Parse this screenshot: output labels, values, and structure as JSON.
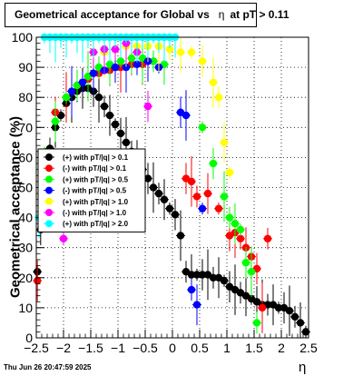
{
  "title": {
    "prefix": "Geometrical acceptance for Global vs",
    "symbol": "η",
    "suffix": "at pT > 0.11"
  },
  "footer": "Thu Jun 26 20:47:59 2025",
  "chart_data": {
    "type": "scatter",
    "title": "Geometrical acceptance for Global vs η at pT > 0.11",
    "xlabel": "η",
    "ylabel": "Geometrical acceptance (%)",
    "xlim": [
      -2.5,
      2.5
    ],
    "ylim": [
      0,
      100
    ],
    "x_ticks": [
      -2.5,
      -2,
      -1.5,
      -1,
      -0.5,
      0,
      0.5,
      1,
      1.5,
      2,
      2.5
    ],
    "x_tick_labels": [
      "−2.5",
      "−2",
      "−1.5",
      "−1",
      "−0.5",
      "0",
      "0.5",
      "1",
      "1.5",
      "2",
      "2.5"
    ],
    "y_ticks": [
      0,
      10,
      20,
      30,
      40,
      50,
      60,
      70,
      80,
      90,
      100
    ],
    "grid": true,
    "legend_position": "middle-left",
    "series": [
      {
        "name": "(+) with pT/|q| > 0.1",
        "color": "#000000",
        "x": [
          -2.48,
          -2.42,
          -2.35,
          -2.25,
          -2.15,
          -2.05,
          -1.95,
          -1.85,
          -1.75,
          -1.65,
          -1.55,
          -1.45,
          -1.35,
          -1.25,
          -1.15,
          -1.05,
          -0.95,
          -0.85,
          -0.75,
          -0.65,
          -0.55,
          -0.45,
          -0.35,
          -0.25,
          -0.15,
          -0.05,
          0.05,
          0.15,
          0.25,
          0.35,
          0.45,
          0.55,
          0.65,
          0.75,
          0.85,
          0.95,
          1.05,
          1.15,
          1.25,
          1.35,
          1.45,
          1.55,
          1.65,
          1.75,
          1.85,
          1.95,
          2.05,
          2.15,
          2.25,
          2.35,
          2.45
        ],
        "y": [
          22,
          36,
          50,
          63,
          70,
          74,
          78,
          80,
          82,
          83,
          83,
          82,
          80,
          77,
          74,
          71,
          68,
          65,
          62,
          59,
          56,
          53,
          50,
          48,
          46,
          43,
          41,
          34,
          22,
          21,
          21,
          21,
          21,
          20,
          20,
          19,
          17,
          16,
          15,
          14,
          13,
          12,
          11,
          11,
          11,
          10,
          10,
          9,
          7,
          5,
          2
        ]
      },
      {
        "name": "(-) with pT/|q| > 0.1",
        "color": "#ff0000",
        "x": [
          -2.48,
          -2.35,
          -2.15,
          -1.95,
          -1.75,
          -1.55,
          -1.35,
          -1.15,
          -0.95,
          -0.75,
          -0.55,
          -0.35,
          0.25,
          0.35,
          0.45,
          0.65,
          0.85,
          1.05,
          1.15,
          1.25,
          1.35,
          1.45,
          1.55,
          1.65,
          1.75
        ],
        "y": [
          19,
          56,
          75,
          80,
          84,
          86,
          88,
          89,
          90,
          91,
          91,
          92,
          53,
          52,
          47,
          48,
          43,
          34,
          35,
          33,
          30,
          27,
          23,
          10,
          33
        ]
      },
      {
        "name": "(+) with pT/|q| > 0.5",
        "color": "#00ff00",
        "x": [
          -2.35,
          -2.15,
          -1.95,
          -1.75,
          -1.55,
          -1.35,
          -1.15,
          -0.95,
          -0.75,
          -0.55,
          -0.35,
          -0.15,
          0.55,
          0.75,
          0.95,
          1.05,
          1.15,
          1.25,
          1.35,
          1.45,
          1.55
        ],
        "y": [
          60,
          72,
          80,
          84,
          87,
          90,
          91,
          92,
          93,
          93,
          92,
          91,
          70,
          58,
          47,
          40,
          38,
          36,
          25,
          22,
          5
        ]
      },
      {
        "name": "(-) with pT/|q| > 0.5",
        "color": "#0000ff",
        "x": [
          -1.85,
          -1.65,
          -1.45,
          -1.25,
          -1.05,
          -0.85,
          -0.65,
          -0.45,
          -0.25,
          0.15,
          0.25,
          0.35,
          0.45,
          0.55
        ],
        "y": [
          82,
          85,
          88,
          89,
          90,
          90,
          91,
          92,
          90,
          75,
          74,
          16,
          11,
          43
        ]
      },
      {
        "name": "(+) with pT/|q| > 1.0",
        "color": "#ffff00",
        "x": [
          -1.45,
          -1.25,
          -1.05,
          -0.85,
          -0.65,
          -0.45,
          -0.25,
          -0.05,
          0.15,
          0.35,
          0.55,
          0.75,
          0.85,
          0.95,
          1.05
        ],
        "y": [
          95,
          95,
          96,
          97,
          97,
          97,
          97,
          96,
          95,
          95,
          92,
          85,
          80,
          65,
          55
        ]
      },
      {
        "name": "(-) with pT/|q| > 1.0",
        "color": "#ff00ff",
        "x": [
          -2.0,
          -1.45,
          -1.25,
          -1.05,
          -0.85,
          -0.65,
          -0.45
        ],
        "y": [
          33,
          95,
          96,
          96,
          98,
          95,
          77
        ]
      },
      {
        "name": "(+) with pT/|q| > 2.0",
        "color": "#00ffff",
        "x": [
          -2.45,
          -2.35,
          -2.25,
          -2.15,
          -2.05,
          -1.95,
          -1.85,
          -1.75,
          -1.65,
          -1.55,
          -1.45,
          -1.35,
          -1.25,
          -1.15,
          -1.05,
          -0.95,
          -0.85,
          -0.75,
          -0.65,
          -0.55,
          -0.45,
          -0.35,
          -0.25,
          -0.15,
          -0.05,
          0.05
        ],
        "y": [
          40,
          100,
          100,
          100,
          100,
          100,
          100,
          100,
          100,
          100,
          100,
          100,
          100,
          100,
          100,
          100,
          100,
          100,
          100,
          100,
          100,
          100,
          100,
          100,
          100,
          100
        ]
      }
    ]
  }
}
